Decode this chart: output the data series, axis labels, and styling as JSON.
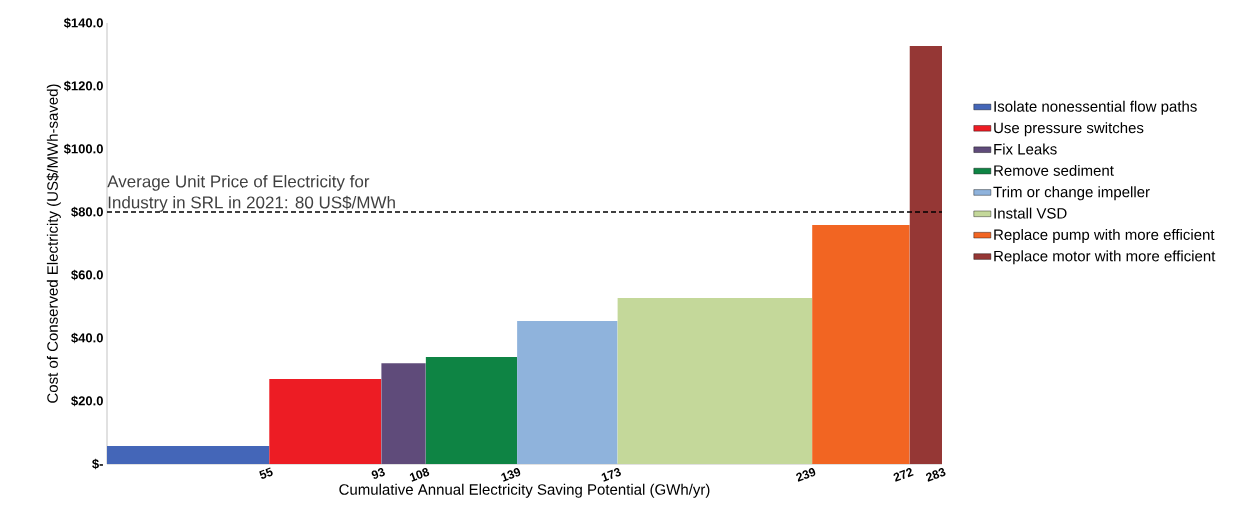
{
  "chart_data": {
    "type": "histogram",
    "xlabel": "Cumulative Annual Electricity Saving Potential (GWh/yr)",
    "ylabel": "Cost of Conserved Electricity (US$/MWh-saved)",
    "bins": [
      0,
      55,
      93,
      108,
      139,
      173,
      239,
      272,
      283
    ],
    "series": [
      {
        "name": "Isolate nonessential flow paths",
        "color": "#4466b8",
        "values": [
          5.7,
          null,
          null,
          null,
          null,
          null,
          null,
          null
        ]
      },
      {
        "name": "Use pressure switches",
        "color": "#ed1c24",
        "values": [
          null,
          27,
          null,
          null,
          null,
          null,
          null,
          null
        ]
      },
      {
        "name": "Fix Leaks",
        "color": "#5f4b7a",
        "values": [
          null,
          null,
          32,
          null,
          null,
          null,
          null,
          null
        ]
      },
      {
        "name": "Remove sediment",
        "color": "#0e8444",
        "values": [
          null,
          null,
          null,
          34,
          null,
          null,
          null,
          null
        ]
      },
      {
        "name": "Trim or change impeller",
        "color": "#8fb3dc",
        "values": [
          null,
          null,
          null,
          null,
          45.4,
          null,
          null,
          null
        ]
      },
      {
        "name": "Install VSD",
        "color": "#c4d89a",
        "values": [
          null,
          null,
          null,
          null,
          null,
          52.7,
          null,
          null
        ]
      },
      {
        "name": "Replace pump with more efficient",
        "color": "#f26522",
        "values": [
          null,
          null,
          null,
          null,
          null,
          null,
          75.9,
          null
        ]
      },
      {
        "name": "Replace motor with more efficient",
        "color": "#953735",
        "values": [
          null,
          null,
          null,
          null,
          null,
          null,
          null,
          132.7
        ]
      }
    ],
    "xlim": [
      0,
      283
    ],
    "xticks": [
      55,
      93,
      108,
      139,
      173,
      239,
      272,
      283
    ],
    "ylim": [
      0,
      140
    ],
    "yticks": [
      {
        "value": 0,
        "label": "$-"
      },
      {
        "value": 20,
        "label": "$20.0"
      },
      {
        "value": 40,
        "label": "$40.0"
      },
      {
        "value": 60,
        "label": "$60.0"
      },
      {
        "value": 80,
        "label": "$80.0"
      },
      {
        "value": 100,
        "label": "$100.0"
      },
      {
        "value": 120,
        "label": "$120.0"
      },
      {
        "value": 140,
        "label": "$140.0"
      }
    ],
    "ref_lines": [
      {
        "axis": "y",
        "value": 80,
        "label": "Average Unit Price of Electricity for Industry in SRL in 2021: 80 US$/MWh",
        "color": "#000000",
        "line_style": "dashed"
      }
    ],
    "grid": false,
    "legend": "right"
  }
}
